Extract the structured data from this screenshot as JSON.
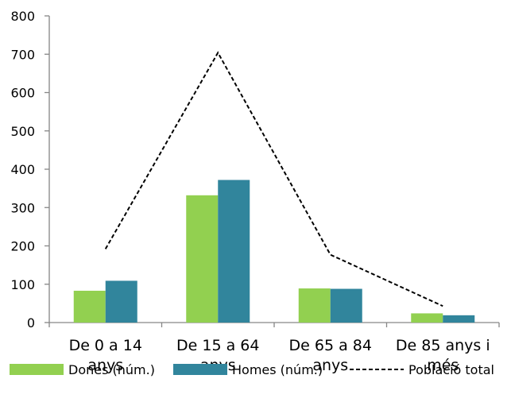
{
  "chart_data": {
    "type": "bar",
    "categories": [
      [
        "De 0 a 14",
        "anys"
      ],
      [
        "De 15 a 64",
        "anys"
      ],
      [
        "De 65 a 84",
        "anys"
      ],
      [
        "De 85 anys i",
        "més"
      ]
    ],
    "series": [
      {
        "name": "Dones (núm.)",
        "type": "bar",
        "color": "#92d050",
        "values": [
          83,
          332,
          89,
          24
        ]
      },
      {
        "name": "Homes (núm.)",
        "type": "bar",
        "color": "#31859c",
        "values": [
          109,
          372,
          88,
          19
        ]
      },
      {
        "name": "Població total",
        "type": "line",
        "style": "dashed",
        "color": "#000000",
        "values": [
          192,
          704,
          177,
          43
        ]
      }
    ],
    "y_ticks": [
      "0",
      "100",
      "200",
      "300",
      "400",
      "500",
      "600",
      "700",
      "800"
    ],
    "ylim": [
      0,
      800
    ],
    "grid": false,
    "legend_position": "bottom"
  }
}
